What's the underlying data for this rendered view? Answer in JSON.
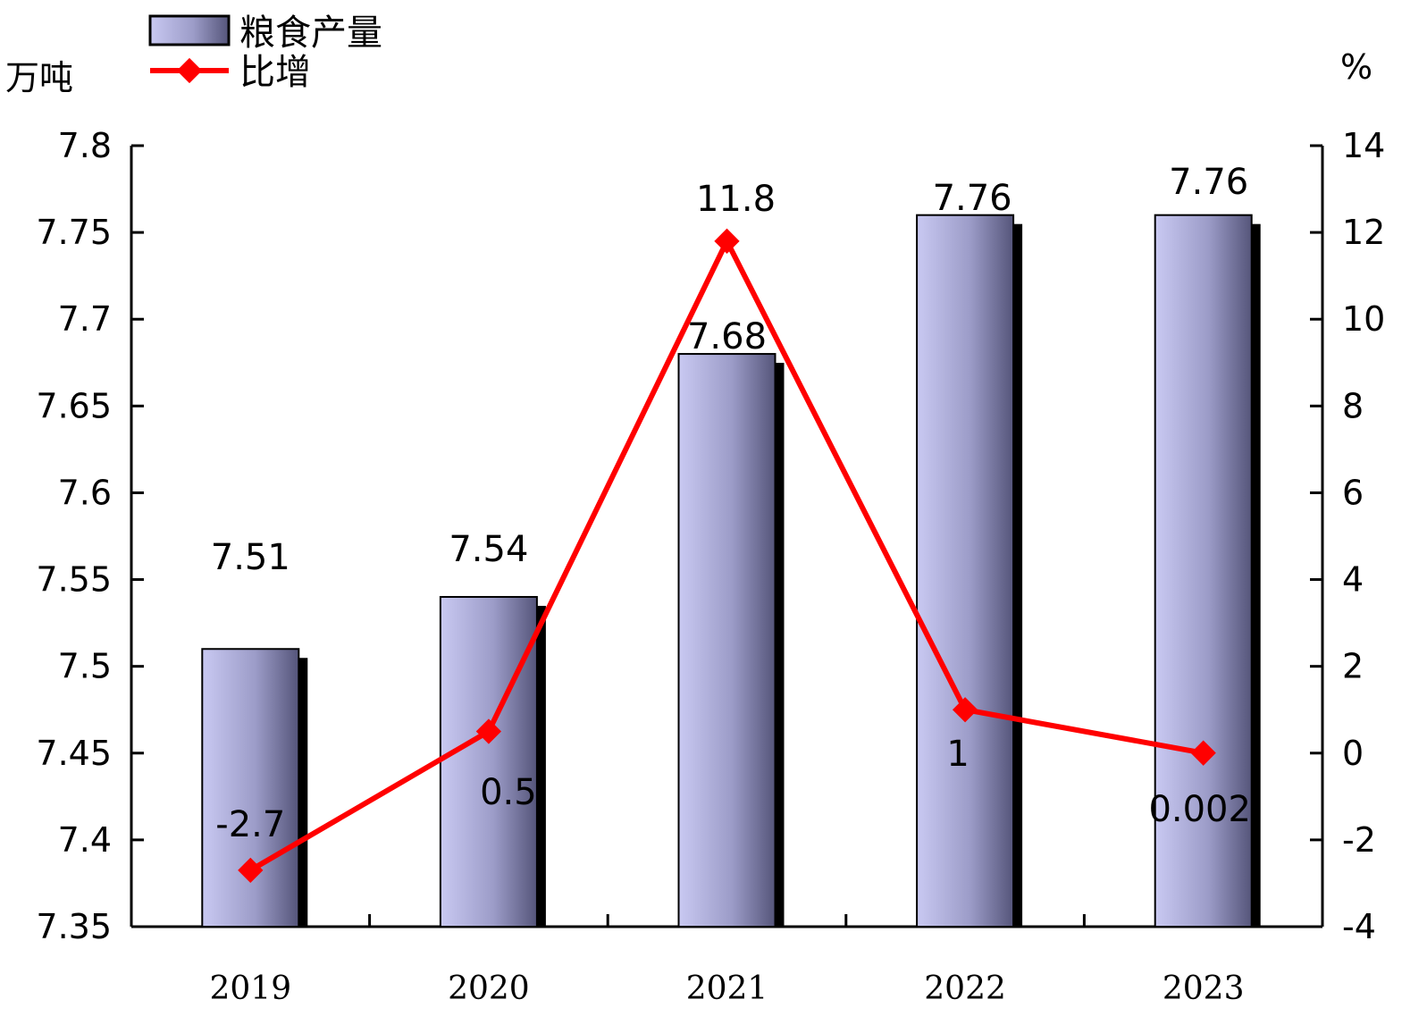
{
  "chart_data": {
    "type": "bar",
    "categories": [
      "2019",
      "2020",
      "2021",
      "2022",
      "2023"
    ],
    "series": [
      {
        "name": "粮食产量",
        "type": "bar",
        "axis": "left",
        "values": [
          7.51,
          7.54,
          7.68,
          7.76,
          7.76
        ],
        "labels": [
          "7.51",
          "7.54",
          "7.68",
          "7.76",
          "7.76"
        ],
        "color": "#b8b8e0"
      },
      {
        "name": "比增",
        "type": "line",
        "axis": "right",
        "values": [
          -2.7,
          0.5,
          11.8,
          1,
          0.002
        ],
        "labels": [
          "-2.7",
          "0.5",
          "11.8",
          "1",
          "0.002"
        ],
        "color": "#ff0000"
      }
    ],
    "left_axis": {
      "unit": "万吨",
      "min": 7.35,
      "max": 7.8,
      "ticks": [
        "7.35",
        "7.4",
        "7.45",
        "7.5",
        "7.55",
        "7.6",
        "7.65",
        "7.7",
        "7.75",
        "7.8"
      ]
    },
    "right_axis": {
      "unit": "%",
      "min": -4,
      "max": 14,
      "ticks": [
        "-4",
        "-2",
        "0",
        "2",
        "4",
        "6",
        "8",
        "10",
        "12",
        "14"
      ]
    },
    "legend": {
      "placement": "top-left",
      "entries": [
        "粮食产量",
        "比增"
      ]
    },
    "grid": false
  }
}
